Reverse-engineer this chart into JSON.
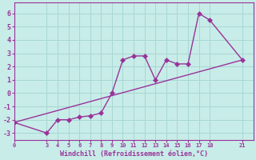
{
  "xlabel": "Windchill (Refroidissement éolien,°C)",
  "bg_color": "#c8ece8",
  "grid_color": "#a8d8d4",
  "line_color": "#993399",
  "x_data": [
    0,
    3,
    4,
    5,
    6,
    7,
    8,
    9,
    10,
    11,
    12,
    13,
    14,
    15,
    16,
    17,
    18,
    21
  ],
  "y_data": [
    -2.2,
    -3.0,
    -2.0,
    -2.0,
    -1.8,
    -1.7,
    -1.5,
    0.0,
    2.5,
    2.8,
    2.8,
    1.0,
    2.5,
    2.2,
    2.2,
    6.0,
    5.5,
    2.5
  ],
  "trend_x": [
    0,
    21
  ],
  "trend_y": [
    -2.2,
    2.5
  ],
  "xlim": [
    0,
    22
  ],
  "ylim": [
    -3.5,
    6.8
  ],
  "yticks": [
    -3,
    -2,
    -1,
    0,
    1,
    2,
    3,
    4,
    5,
    6
  ],
  "xticks": [
    0,
    3,
    4,
    5,
    6,
    7,
    8,
    9,
    10,
    11,
    12,
    13,
    14,
    15,
    16,
    17,
    18,
    21
  ],
  "marker_size": 3,
  "line_width": 1.0
}
